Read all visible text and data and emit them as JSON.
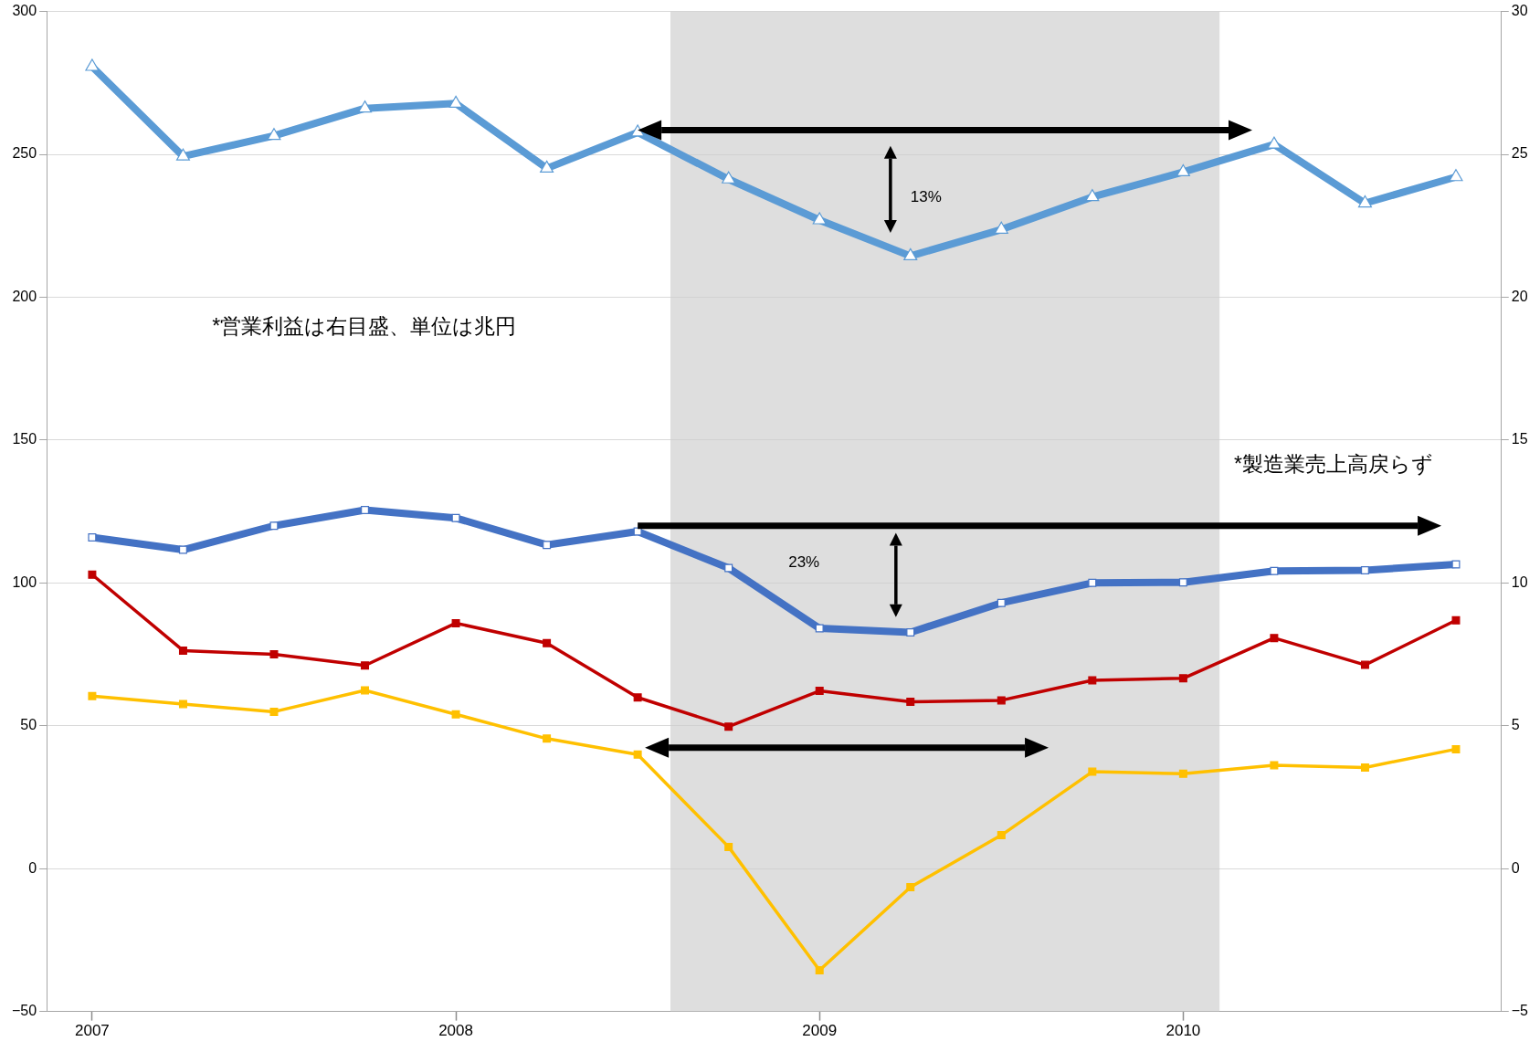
{
  "chart_data": {
    "type": "line",
    "x": [
      2007,
      2007.25,
      2007.5,
      2007.75,
      2008,
      2008.25,
      2008.5,
      2008.75,
      2009,
      2009.25,
      2009.5,
      2009.75,
      2010,
      2010.25,
      2010.5,
      2010.75
    ],
    "xlim": [
      2006.875,
      2010.875
    ],
    "xticks": [
      2007,
      2008,
      2009,
      2010
    ],
    "ylim": [
      -50,
      300
    ],
    "yticks": [
      {
        "value": -50,
        "label": "−50"
      },
      0,
      50,
      100,
      150,
      200,
      250,
      300
    ],
    "y2lim": [
      -5,
      30
    ],
    "y2ticks": [
      {
        "value": -5,
        "label": "−5"
      },
      0,
      5,
      10,
      15,
      20,
      25,
      30
    ],
    "series": [
      {
        "color": "#5b9bd5",
        "marker": "triangle",
        "values": [
          280.7,
          249.3,
          256.5,
          266.1,
          267.8,
          245.1,
          257.7,
          241.3,
          227.0,
          214.4,
          223.7,
          235.1,
          243.8,
          253.5,
          232.9,
          242.1
        ]
      },
      {
        "color": "#4472c4",
        "values": [
          115.9,
          111.6,
          120.0,
          125.5,
          122.7,
          113.3,
          118.0,
          105.2,
          84.1,
          82.7,
          93.0,
          100.0,
          100.2,
          104.2,
          104.4,
          106.5
        ]
      },
      {
        "color": "#c00000",
        "axis": "y2",
        "values": [
          10.29,
          7.63,
          7.5,
          7.11,
          8.59,
          7.89,
          5.99,
          4.97,
          6.22,
          5.84,
          5.89,
          6.59,
          6.66,
          8.07,
          7.13,
          8.69
        ]
      },
      {
        "color": "#ffc000",
        "axis": "y2",
        "values": [
          6.04,
          5.76,
          5.49,
          6.24,
          5.4,
          4.55,
          3.99,
          0.76,
          -3.56,
          -0.65,
          1.17,
          3.39,
          3.32,
          3.62,
          3.54,
          4.18
        ]
      }
    ],
    "bands": [
      {
        "axis": "x",
        "from": 2008.59,
        "to": 2010.1,
        "color": "#cccccc"
      }
    ],
    "annotations": [
      "*営業利益は右目盛、単位は兆円",
      "*製造業売上高戻らず",
      "13%",
      "23%"
    ],
    "grid": "y",
    "marker": "square",
    "legend": false,
    "line_style": "solid"
  }
}
